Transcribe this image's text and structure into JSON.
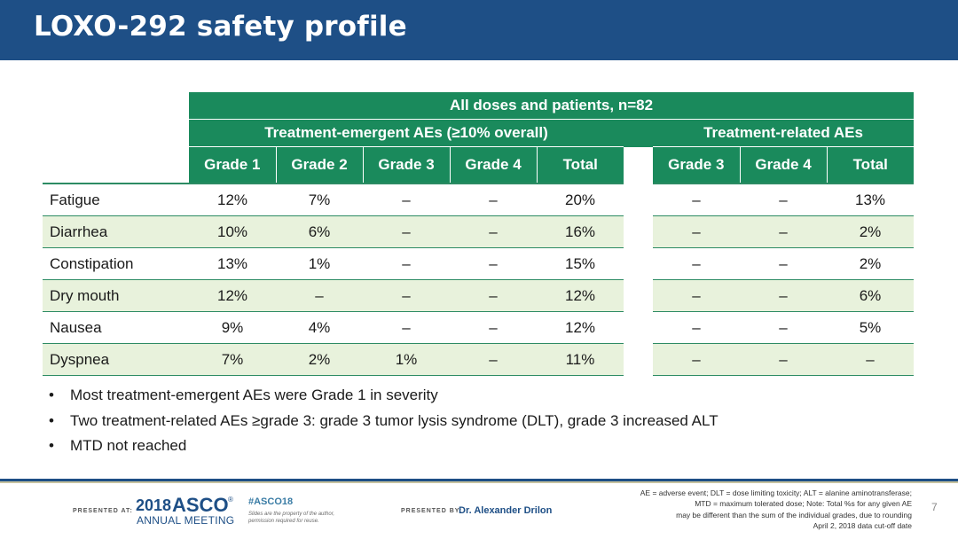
{
  "slide": {
    "title": "LOXO-292 safety profile",
    "page_number": "7"
  },
  "table": {
    "top_header": "All doses and patients, n=82",
    "group_emergent": "Treatment-emergent AEs (≥10% overall)",
    "group_related": "Treatment-related AEs",
    "columns_emergent": [
      "Grade 1",
      "Grade 2",
      "Grade 3",
      "Grade 4",
      "Total"
    ],
    "columns_related": [
      "Grade 3",
      "Grade 4",
      "Total"
    ],
    "rows": [
      {
        "label": "Fatigue",
        "emergent": [
          "12%",
          "7%",
          "–",
          "–",
          "20%"
        ],
        "related": [
          "–",
          "–",
          "13%"
        ]
      },
      {
        "label": "Diarrhea",
        "emergent": [
          "10%",
          "6%",
          "–",
          "–",
          "16%"
        ],
        "related": [
          "–",
          "–",
          "2%"
        ]
      },
      {
        "label": "Constipation",
        "emergent": [
          "13%",
          "1%",
          "–",
          "–",
          "15%"
        ],
        "related": [
          "–",
          "–",
          "2%"
        ]
      },
      {
        "label": "Dry mouth",
        "emergent": [
          "12%",
          "–",
          "–",
          "–",
          "12%"
        ],
        "related": [
          "–",
          "–",
          "6%"
        ]
      },
      {
        "label": "Nausea",
        "emergent": [
          "9%",
          "4%",
          "–",
          "–",
          "12%"
        ],
        "related": [
          "–",
          "–",
          "5%"
        ]
      },
      {
        "label": "Dyspnea",
        "emergent": [
          "7%",
          "2%",
          "1%",
          "–",
          "11%"
        ],
        "related": [
          "–",
          "–",
          "–"
        ]
      }
    ]
  },
  "bullets": [
    "Most treatment-emergent AEs were Grade 1 in severity",
    "Two treatment-related AEs ≥grade 3: grade 3 tumor lysis syndrome (DLT), grade 3 increased ALT",
    "MTD not reached"
  ],
  "bullet_glyph": "•",
  "footer": {
    "presented_at": "PRESENTED AT:",
    "asco_year": "2018",
    "asco_word": "ASCO",
    "asco_reg": "®",
    "annual_meeting": "ANNUAL MEETING",
    "hashtag": "#ASCO18",
    "slides_note": "Slides are the property of the author, permission required for reuse.",
    "presented_by": "PRESENTED BY:",
    "presenter": "Dr. Alexander Drilon",
    "footnote_lines": [
      "AE = adverse event; DLT = dose limiting toxicity; ALT = alanine aminotransferase;",
      "MTD = maximum tolerated dose; Note: Total %s for any given AE",
      "may be different than the sum of the individual grades, due to rounding",
      "April 2, 2018 data cut-off date"
    ]
  },
  "colors": {
    "header_blue": "#1e4f86",
    "table_green": "#1a8a5c",
    "row_alt": "#e8f2dc"
  }
}
